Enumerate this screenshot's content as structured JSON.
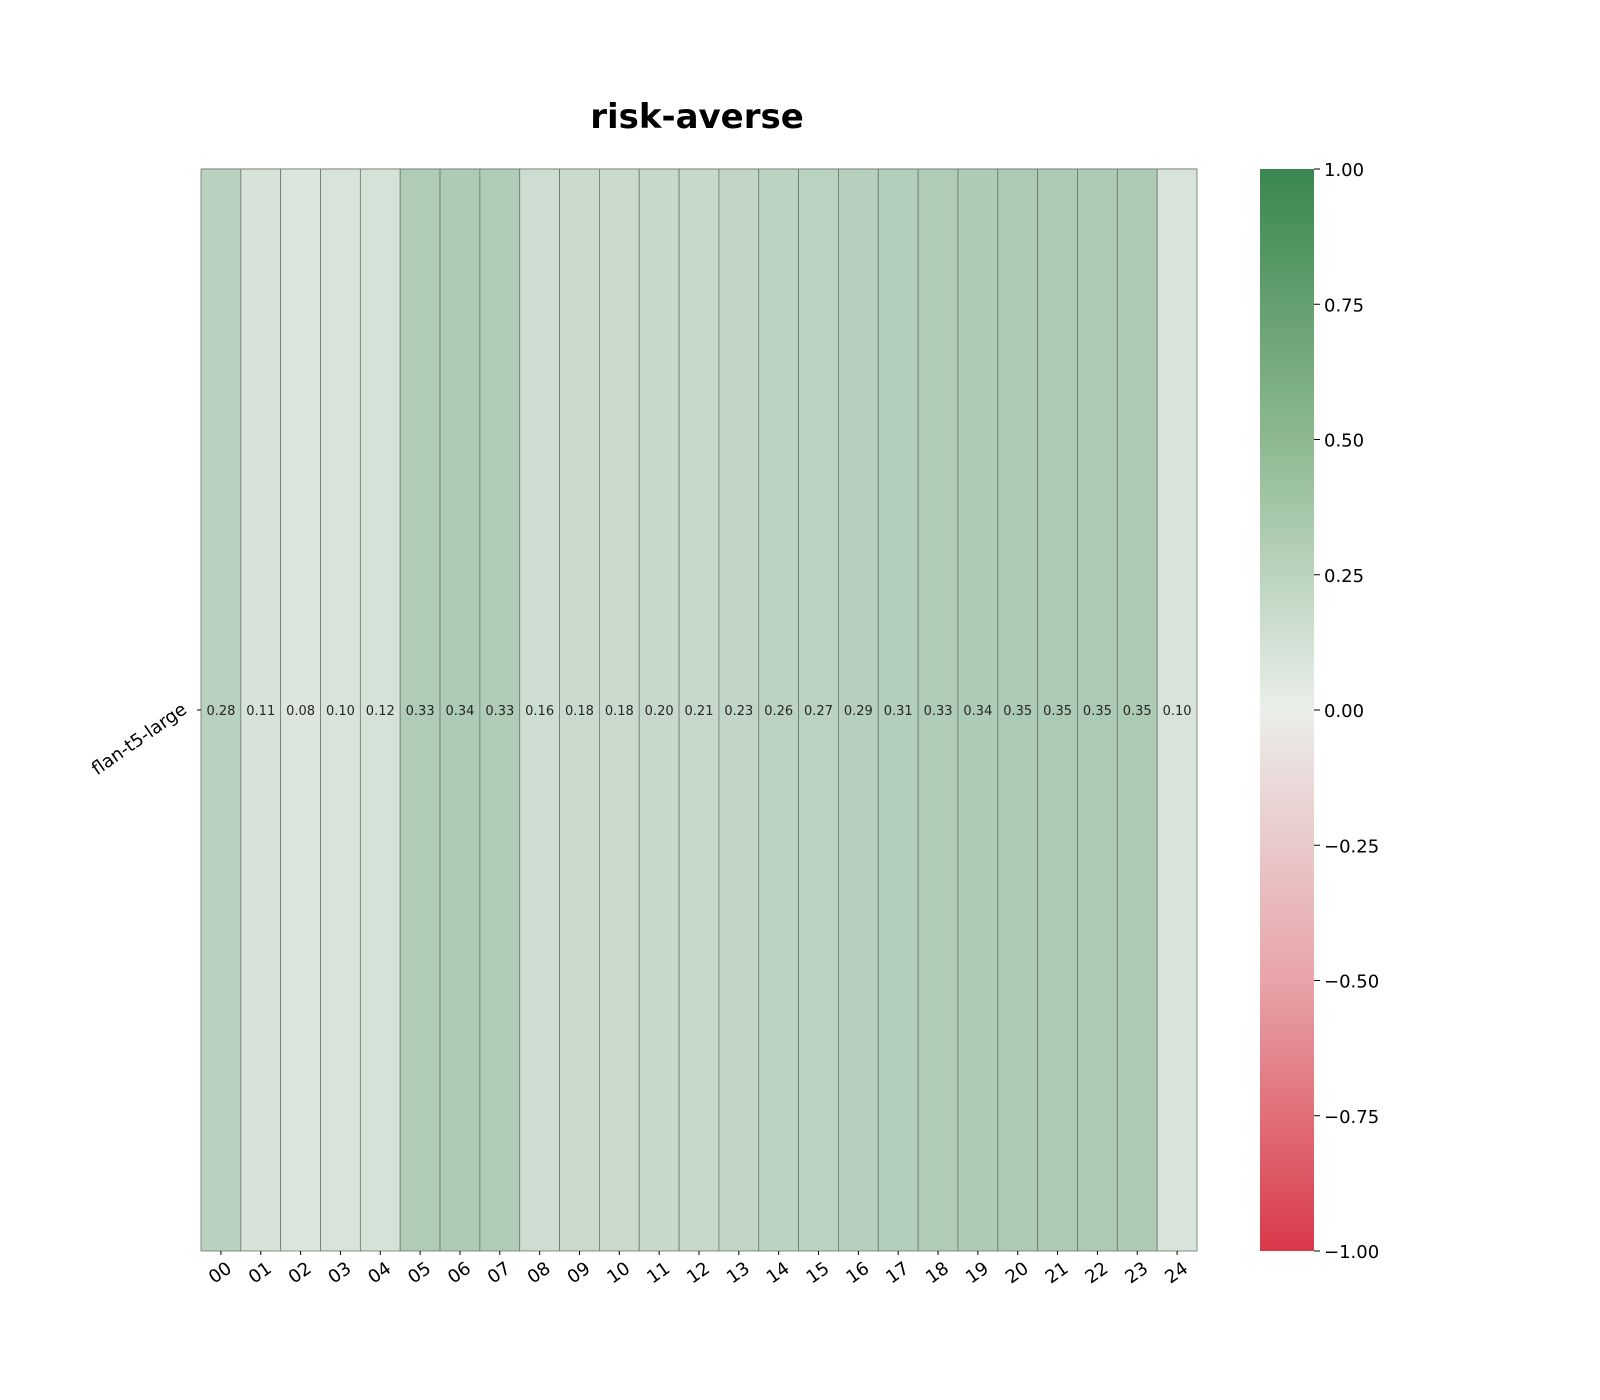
{
  "chart_data": {
    "type": "heatmap",
    "title": "risk-averse",
    "rows": [
      "flan-t5-large"
    ],
    "columns": [
      "00",
      "01",
      "02",
      "03",
      "04",
      "05",
      "06",
      "07",
      "08",
      "09",
      "10",
      "11",
      "12",
      "13",
      "14",
      "15",
      "16",
      "17",
      "18",
      "19",
      "20",
      "21",
      "22",
      "23",
      "24"
    ],
    "values": [
      [
        0.28,
        0.11,
        0.08,
        0.1,
        0.12,
        0.33,
        0.34,
        0.33,
        0.16,
        0.18,
        0.18,
        0.2,
        0.21,
        0.23,
        0.26,
        0.27,
        0.29,
        0.31,
        0.33,
        0.34,
        0.35,
        0.35,
        0.35,
        0.35,
        0.1
      ]
    ],
    "cell_labels": [
      [
        "0.28",
        "0.11",
        "0.08",
        "0.10",
        "0.12",
        "0.33",
        "0.34",
        "0.33",
        "0.16",
        "0.18",
        "0.18",
        "0.20",
        "0.21",
        "0.23",
        "0.26",
        "0.27",
        "0.29",
        "0.31",
        "0.33",
        "0.34",
        "0.35",
        "0.35",
        "0.35",
        "0.35",
        "0.10"
      ]
    ],
    "colorbar": {
      "range": [
        -1.0,
        1.0
      ],
      "tick_labels": [
        "1.00",
        "0.75",
        "0.50",
        "0.25",
        "0.00",
        "−0.25",
        "−0.50",
        "−0.75",
        "−1.00"
      ],
      "tick_values": [
        1.0,
        0.75,
        0.5,
        0.25,
        0.0,
        -0.25,
        -0.5,
        -0.75,
        -1.0
      ]
    },
    "colormap": {
      "negative": "#d9394a",
      "neutral": "#eaeeea",
      "positive": "#3a8650"
    },
    "cell_border_color": "#6b776b",
    "xlabel": "",
    "ylabel": ""
  }
}
